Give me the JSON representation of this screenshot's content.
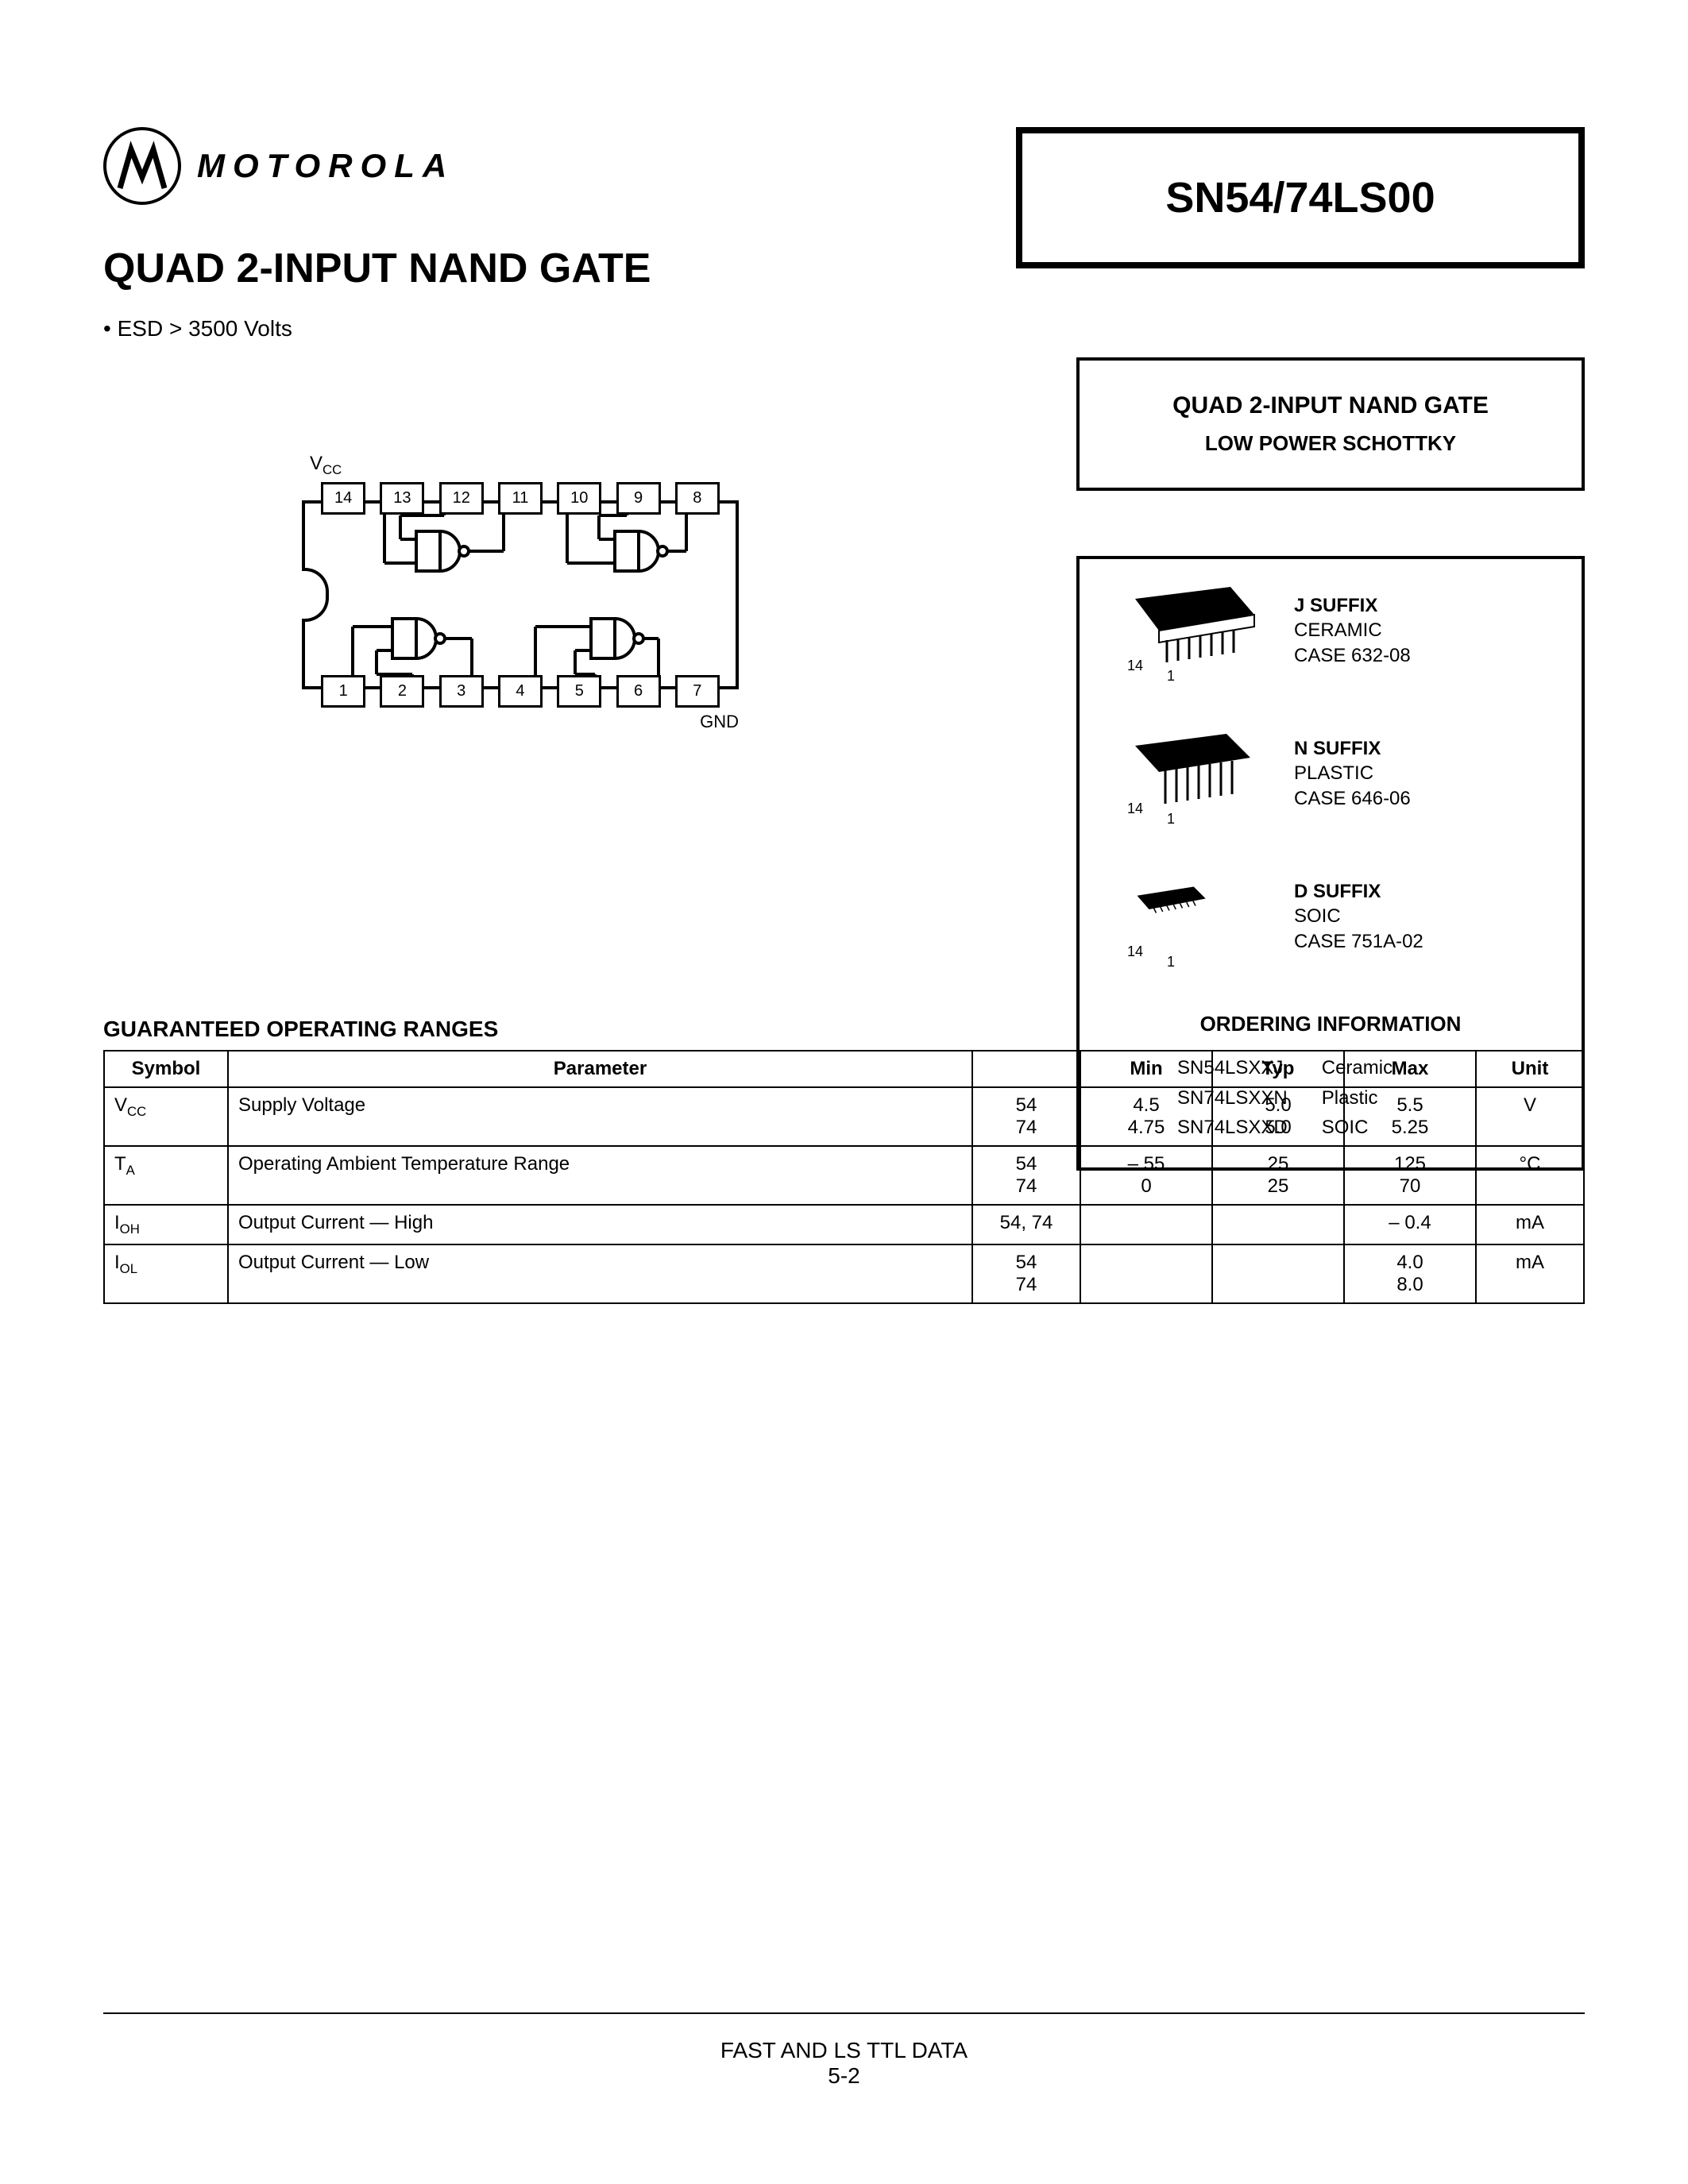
{
  "brand": "MOTOROLA",
  "main_title": "QUAD 2-INPUT NAND GATE",
  "bullet": "ESD > 3500 Volts",
  "part_number": "SN54/74LS00",
  "desc_box": {
    "title": "QUAD 2-INPUT NAND GATE",
    "subtitle": "LOW POWER SCHOTTKY"
  },
  "pin_diagram": {
    "vcc_label": "VCC",
    "gnd_label": "GND",
    "top_pins": [
      "14",
      "13",
      "12",
      "11",
      "10",
      "9",
      "8"
    ],
    "bottom_pins": [
      "1",
      "2",
      "3",
      "4",
      "5",
      "6",
      "7"
    ]
  },
  "packages": [
    {
      "pin14": "14",
      "pin1": "1",
      "suffix": "J SUFFIX",
      "type": "CERAMIC",
      "case": "CASE 632-08"
    },
    {
      "pin14": "14",
      "pin1": "1",
      "suffix": "N SUFFIX",
      "type": "PLASTIC",
      "case": "CASE 646-06"
    },
    {
      "pin14": "14",
      "pin1": "1",
      "suffix": "D SUFFIX",
      "type": "SOIC",
      "case": "CASE 751A-02"
    }
  ],
  "ordering_title": "ORDERING INFORMATION",
  "ordering": [
    {
      "code": "SN54LSXXJ",
      "desc": "Ceramic"
    },
    {
      "code": "SN74LSXXN",
      "desc": "Plastic"
    },
    {
      "code": "SN74LSXXD",
      "desc": "SOIC"
    }
  ],
  "table_title": "GUARANTEED OPERATING RANGES",
  "table": {
    "headers": [
      "Symbol",
      "Parameter",
      "",
      "Min",
      "Typ",
      "Max",
      "Unit"
    ],
    "col_widths": [
      "130px",
      "auto",
      "110px",
      "140px",
      "140px",
      "140px",
      "110px"
    ],
    "rows": [
      {
        "symbol": "V<sub class='sub'>CC</sub>",
        "param": "Supply Voltage",
        "cond": "54<br>74",
        "min": "4.5<br>4.75",
        "typ": "5.0<br>5.0",
        "max": "5.5<br>5.25",
        "unit": "V"
      },
      {
        "symbol": "T<sub class='sub'>A</sub>",
        "param": "Operating Ambient Temperature Range",
        "cond": "54<br>74",
        "min": "– 55<br>0",
        "typ": "25<br>25",
        "max": "125<br>70",
        "unit": "°C"
      },
      {
        "symbol": "I<sub class='sub'>OH</sub>",
        "param": "Output Current — High",
        "cond": "54, 74",
        "min": "",
        "typ": "",
        "max": "– 0.4",
        "unit": "mA"
      },
      {
        "symbol": "I<sub class='sub'>OL</sub>",
        "param": "Output Current — Low",
        "cond": "54<br>74",
        "min": "",
        "typ": "",
        "max": "4.0<br>8.0",
        "unit": "mA"
      }
    ]
  },
  "footer_text": "FAST AND LS TTL DATA",
  "footer_page": "5-2"
}
